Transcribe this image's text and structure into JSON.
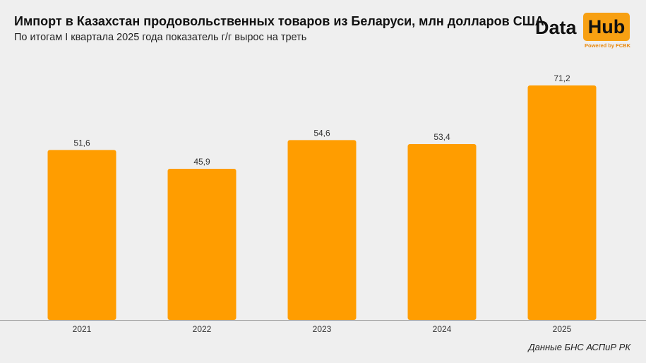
{
  "header": {
    "title": "Импорт в Казахстан продовольственных товаров из Беларуси, млн долларов США",
    "subtitle": "По итогам I квартала 2025 года показатель г/г вырос на треть"
  },
  "logo": {
    "word1": "Data",
    "word2": "Hub",
    "tagline": "Powered by FCBK",
    "accent_color": "#f7a012"
  },
  "source": "Данные БНС АСПиР РК",
  "chart_data": {
    "type": "bar",
    "categories": [
      "2021",
      "2022",
      "2023",
      "2024",
      "2025"
    ],
    "values": [
      51.6,
      45.9,
      54.6,
      53.4,
      71.2
    ],
    "value_labels": [
      "51,6",
      "45,9",
      "54,6",
      "53,4",
      "71,2"
    ],
    "title": "Импорт в Казахстан продовольственных товаров из Беларуси, млн долларов США",
    "xlabel": "",
    "ylabel": "",
    "ylim": [
      0,
      71.2
    ],
    "grid": false,
    "legend": "none",
    "bar_color": "#ff9d00"
  }
}
